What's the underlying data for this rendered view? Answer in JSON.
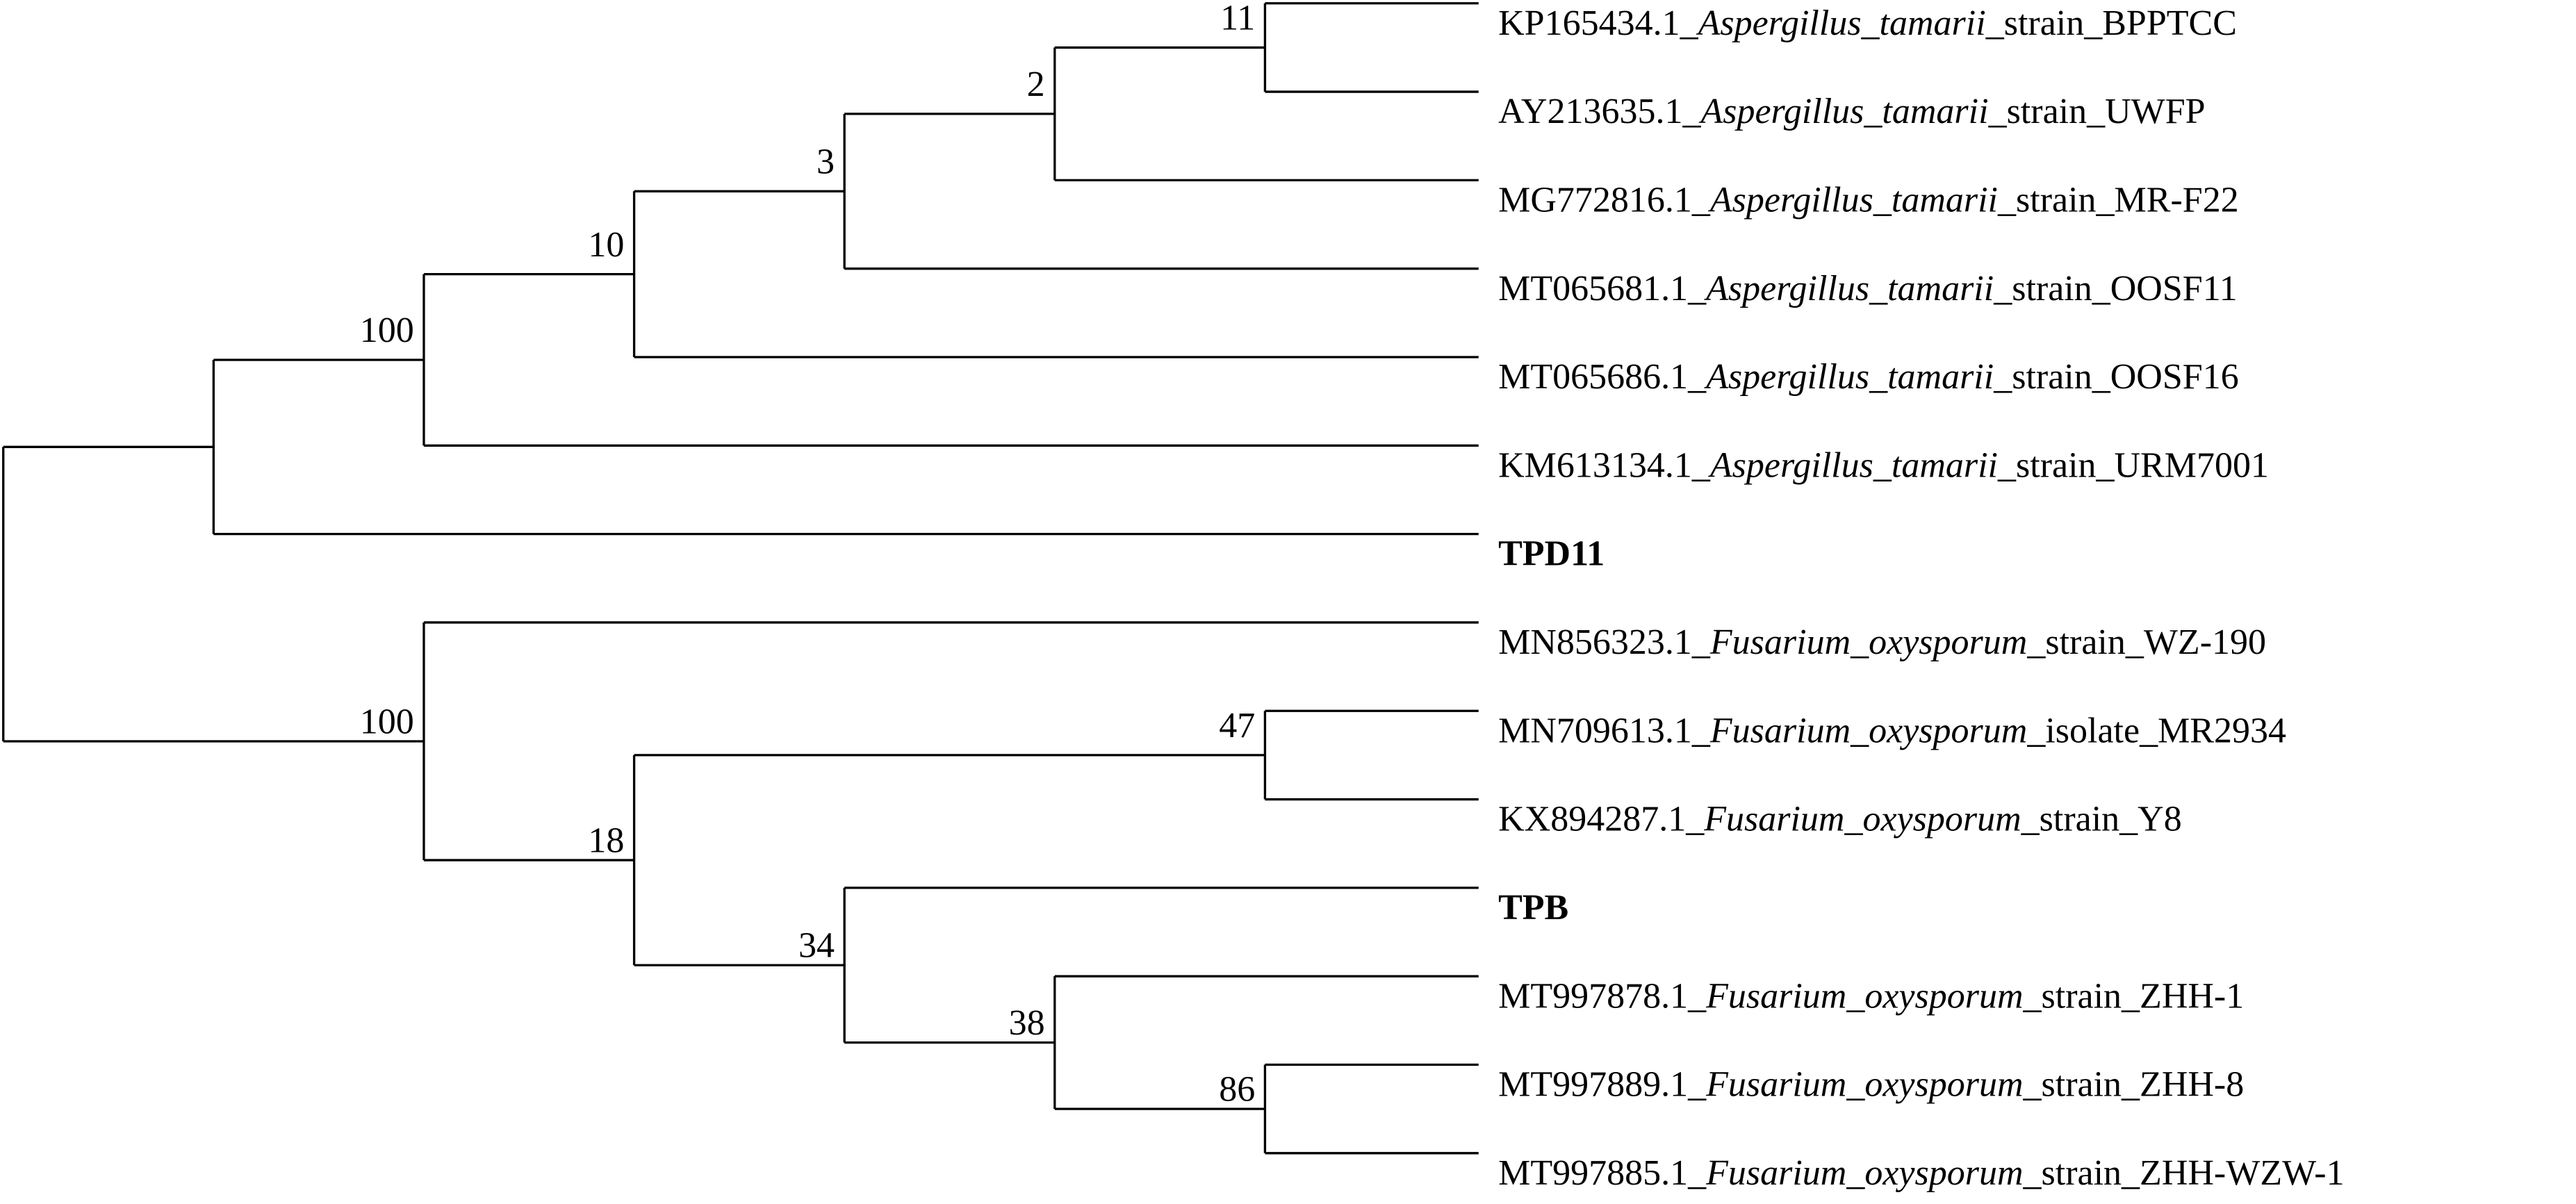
{
  "tree": {
    "children": [
      {
        "children": [
          {
            "support": 100,
            "children": [
              {
                "support": 10,
                "children": [
                  {
                    "support": 3,
                    "children": [
                      {
                        "support": 2,
                        "children": [
                          {
                            "support": 11,
                            "children": [
                              {
                                "accession": "KP165434.1_",
                                "species": "Aspergillus_tamarii",
                                "suffix": "_strain_BPPTCC"
                              },
                              {
                                "accession": "AY213635.1_",
                                "species": "Aspergillus_tamarii",
                                "suffix": "_strain_UWFP"
                              }
                            ]
                          },
                          {
                            "accession": "MG772816.1_",
                            "species": "Aspergillus_tamarii",
                            "suffix": "_strain_MR-F22"
                          }
                        ]
                      },
                      {
                        "accession": "MT065681.1_",
                        "species": "Aspergillus_tamarii",
                        "suffix": "_strain_OOSF11"
                      }
                    ]
                  },
                  {
                    "accession": "MT065686.1_",
                    "species": "Aspergillus_tamarii",
                    "suffix": "_strain_OOSF16"
                  }
                ]
              },
              {
                "accession": "KM613134.1_",
                "species": "Aspergillus_tamarii",
                "suffix": "_strain_URM7001"
              }
            ]
          },
          {
            "label": "TPD11"
          }
        ]
      },
      {
        "support": 100,
        "children": [
          {
            "accession": "MN856323.1_",
            "species": "Fusarium_oxysporum",
            "suffix": "_strain_WZ-190"
          },
          {
            "support": 18,
            "children": [
              {
                "support": 47,
                "children": [
                  {
                    "accession": "MN709613.1_",
                    "species": "Fusarium_oxysporum",
                    "suffix": "_isolate_MR2934"
                  },
                  {
                    "accession": "KX894287.1_",
                    "species": "Fusarium_oxysporum",
                    "suffix": "_strain_Y8"
                  }
                ]
              },
              {
                "support": 34,
                "children": [
                  {
                    "label": "TPB"
                  },
                  {
                    "support": 38,
                    "children": [
                      {
                        "accession": "MT997878.1_",
                        "species": "Fusarium_oxysporum",
                        "suffix": "_strain_ZHH-1"
                      },
                      {
                        "support": 86,
                        "children": [
                          {
                            "accession": "MT997889.1_",
                            "species": "Fusarium_oxysporum",
                            "suffix": "_strain_ZHH-8"
                          },
                          {
                            "accession": "MT997885.1_",
                            "species": "Fusarium_oxysporum",
                            "suffix": "_strain_ZHH-WZW-1"
                          }
                        ]
                      }
                    ]
                  }
                ]
              }
            ]
          }
        ]
      }
    ]
  }
}
